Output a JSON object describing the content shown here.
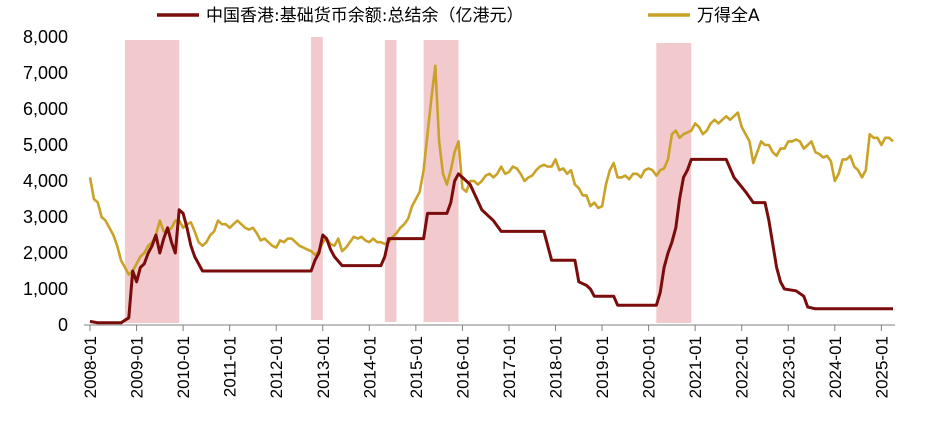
{
  "chart_data": {
    "type": "line",
    "y_ticks": [
      "0",
      "1,000",
      "2,000",
      "3,000",
      "4,000",
      "5,000",
      "6,000",
      "7,000",
      "8,000"
    ],
    "ylim": [
      0,
      8000
    ],
    "x_ticks": [
      "2008-01",
      "2009-01",
      "2010-01",
      "2011-01",
      "2012-01",
      "2013-01",
      "2014-01",
      "2015-01",
      "2016-01",
      "2017-01",
      "2018-01",
      "2019-01",
      "2020-01",
      "2021-01",
      "2022-01",
      "2023-01",
      "2024-01",
      "2025-01"
    ],
    "xlim": [
      "2008-01",
      "2025-04"
    ],
    "grid": false,
    "legend_position": "top",
    "colors": {
      "hkd_series": "#7a0c0c",
      "wind_a_series": "#c9a227",
      "shade": "#f2c9cc"
    },
    "shaded_periods": [
      {
        "start": "2008-10",
        "end": "2009-12"
      },
      {
        "start": "2012-10",
        "end": "2013-01"
      },
      {
        "start": "2014-05",
        "end": "2014-08"
      },
      {
        "start": "2015-03",
        "end": "2015-12"
      },
      {
        "start": "2020-03",
        "end": "2020-12"
      }
    ],
    "series": [
      {
        "name": "中国香港:基础货币余额:总结余（亿港元）",
        "points": [
          [
            "2008-01",
            100
          ],
          [
            "2008-03",
            60
          ],
          [
            "2008-09",
            60
          ],
          [
            "2008-11",
            200
          ],
          [
            "2008-12",
            1500
          ],
          [
            "2009-01",
            1200
          ],
          [
            "2009-02",
            1600
          ],
          [
            "2009-03",
            1700
          ],
          [
            "2009-04",
            2000
          ],
          [
            "2009-05",
            2200
          ],
          [
            "2009-06",
            2500
          ],
          [
            "2009-07",
            2000
          ],
          [
            "2009-08",
            2400
          ],
          [
            "2009-09",
            2700
          ],
          [
            "2009-10",
            2300
          ],
          [
            "2009-11",
            2000
          ],
          [
            "2009-12",
            3200
          ],
          [
            "2010-01",
            3100
          ],
          [
            "2010-02",
            2700
          ],
          [
            "2010-03",
            2200
          ],
          [
            "2010-04",
            1900
          ],
          [
            "2010-06",
            1500
          ],
          [
            "2012-10",
            1500
          ],
          [
            "2012-11",
            1800
          ],
          [
            "2012-12",
            2000
          ],
          [
            "2013-01",
            2500
          ],
          [
            "2013-02",
            2400
          ],
          [
            "2013-03",
            2100
          ],
          [
            "2013-04",
            1900
          ],
          [
            "2013-06",
            1650
          ],
          [
            "2014-04",
            1650
          ],
          [
            "2014-05",
            1900
          ],
          [
            "2014-06",
            2400
          ],
          [
            "2015-03",
            2400
          ],
          [
            "2015-04",
            3100
          ],
          [
            "2015-09",
            3100
          ],
          [
            "2015-10",
            3400
          ],
          [
            "2015-11",
            4000
          ],
          [
            "2015-12",
            4200
          ],
          [
            "2016-01",
            4100
          ],
          [
            "2016-03",
            3900
          ],
          [
            "2016-06",
            3200
          ],
          [
            "2016-09",
            2900
          ],
          [
            "2016-11",
            2600
          ],
          [
            "2017-10",
            2600
          ],
          [
            "2017-12",
            1800
          ],
          [
            "2018-06",
            1800
          ],
          [
            "2018-07",
            1200
          ],
          [
            "2018-09",
            1100
          ],
          [
            "2018-10",
            1000
          ],
          [
            "2018-11",
            800
          ],
          [
            "2019-04",
            800
          ],
          [
            "2019-05",
            550
          ],
          [
            "2020-03",
            550
          ],
          [
            "2020-04",
            900
          ],
          [
            "2020-05",
            1600
          ],
          [
            "2020-06",
            2000
          ],
          [
            "2020-07",
            2300
          ],
          [
            "2020-08",
            2700
          ],
          [
            "2020-09",
            3500
          ],
          [
            "2020-10",
            4100
          ],
          [
            "2020-11",
            4300
          ],
          [
            "2020-12",
            4600
          ],
          [
            "2021-09",
            4600
          ],
          [
            "2021-11",
            4100
          ],
          [
            "2022-02",
            3700
          ],
          [
            "2022-04",
            3400
          ],
          [
            "2022-07",
            3400
          ],
          [
            "2022-08",
            2900
          ],
          [
            "2022-10",
            1600
          ],
          [
            "2022-11",
            1200
          ],
          [
            "2022-12",
            1000
          ],
          [
            "2023-03",
            950
          ],
          [
            "2023-05",
            800
          ],
          [
            "2023-06",
            500
          ],
          [
            "2023-08",
            450
          ],
          [
            "2025-04",
            450
          ]
        ]
      },
      {
        "name": "万得全A",
        "points": [
          [
            "2008-01",
            4100
          ],
          [
            "2008-02",
            3500
          ],
          [
            "2008-03",
            3400
          ],
          [
            "2008-04",
            3000
          ],
          [
            "2008-05",
            2900
          ],
          [
            "2008-06",
            2700
          ],
          [
            "2008-07",
            2500
          ],
          [
            "2008-08",
            2200
          ],
          [
            "2008-09",
            1800
          ],
          [
            "2008-10",
            1600
          ],
          [
            "2008-11",
            1400
          ],
          [
            "2008-12",
            1500
          ],
          [
            "2009-01",
            1700
          ],
          [
            "2009-02",
            1900
          ],
          [
            "2009-03",
            2000
          ],
          [
            "2009-04",
            2200
          ],
          [
            "2009-05",
            2300
          ],
          [
            "2009-06",
            2500
          ],
          [
            "2009-07",
            2900
          ],
          [
            "2009-08",
            2600
          ],
          [
            "2009-09",
            2600
          ],
          [
            "2009-10",
            2700
          ],
          [
            "2009-11",
            2900
          ],
          [
            "2009-12",
            2900
          ],
          [
            "2010-01",
            2700
          ],
          [
            "2010-02",
            2800
          ],
          [
            "2010-03",
            2850
          ],
          [
            "2010-04",
            2600
          ],
          [
            "2010-05",
            2300
          ],
          [
            "2010-06",
            2200
          ],
          [
            "2010-07",
            2300
          ],
          [
            "2010-08",
            2500
          ],
          [
            "2010-09",
            2600
          ],
          [
            "2010-10",
            2900
          ],
          [
            "2010-11",
            2800
          ],
          [
            "2010-12",
            2800
          ],
          [
            "2011-01",
            2700
          ],
          [
            "2011-02",
            2800
          ],
          [
            "2011-03",
            2900
          ],
          [
            "2011-04",
            2800
          ],
          [
            "2011-05",
            2700
          ],
          [
            "2011-06",
            2650
          ],
          [
            "2011-07",
            2700
          ],
          [
            "2011-08",
            2550
          ],
          [
            "2011-09",
            2350
          ],
          [
            "2011-10",
            2400
          ],
          [
            "2011-11",
            2300
          ],
          [
            "2011-12",
            2200
          ],
          [
            "2012-01",
            2150
          ],
          [
            "2012-02",
            2350
          ],
          [
            "2012-03",
            2300
          ],
          [
            "2012-04",
            2400
          ],
          [
            "2012-05",
            2400
          ],
          [
            "2012-06",
            2300
          ],
          [
            "2012-07",
            2200
          ],
          [
            "2012-08",
            2150
          ],
          [
            "2012-09",
            2100
          ],
          [
            "2012-10",
            2050
          ],
          [
            "2012-11",
            1950
          ],
          [
            "2012-12",
            2050
          ],
          [
            "2013-01",
            2300
          ],
          [
            "2013-02",
            2400
          ],
          [
            "2013-03",
            2250
          ],
          [
            "2013-04",
            2200
          ],
          [
            "2013-05",
            2400
          ],
          [
            "2013-06",
            2050
          ],
          [
            "2013-07",
            2150
          ],
          [
            "2013-08",
            2300
          ],
          [
            "2013-09",
            2450
          ],
          [
            "2013-10",
            2400
          ],
          [
            "2013-11",
            2450
          ],
          [
            "2013-12",
            2350
          ],
          [
            "2014-01",
            2300
          ],
          [
            "2014-02",
            2400
          ],
          [
            "2014-03",
            2300
          ],
          [
            "2014-04",
            2300
          ],
          [
            "2014-05",
            2250
          ],
          [
            "2014-06",
            2300
          ],
          [
            "2014-07",
            2450
          ],
          [
            "2014-08",
            2550
          ],
          [
            "2014-09",
            2700
          ],
          [
            "2014-10",
            2800
          ],
          [
            "2014-11",
            2950
          ],
          [
            "2014-12",
            3300
          ],
          [
            "2015-01",
            3500
          ],
          [
            "2015-02",
            3700
          ],
          [
            "2015-03",
            4300
          ],
          [
            "2015-04",
            5300
          ],
          [
            "2015-05",
            6300
          ],
          [
            "2015-06",
            7200
          ],
          [
            "2015-07",
            5100
          ],
          [
            "2015-08",
            4200
          ],
          [
            "2015-09",
            3900
          ],
          [
            "2015-10",
            4300
          ],
          [
            "2015-11",
            4800
          ],
          [
            "2015-12",
            5100
          ],
          [
            "2016-01",
            3800
          ],
          [
            "2016-02",
            3700
          ],
          [
            "2016-03",
            4000
          ],
          [
            "2016-04",
            4000
          ],
          [
            "2016-05",
            3900
          ],
          [
            "2016-06",
            4000
          ],
          [
            "2016-07",
            4150
          ],
          [
            "2016-08",
            4200
          ],
          [
            "2016-09",
            4100
          ],
          [
            "2016-10",
            4200
          ],
          [
            "2016-11",
            4400
          ],
          [
            "2016-12",
            4200
          ],
          [
            "2017-01",
            4250
          ],
          [
            "2017-02",
            4400
          ],
          [
            "2017-03",
            4350
          ],
          [
            "2017-04",
            4200
          ],
          [
            "2017-05",
            4000
          ],
          [
            "2017-06",
            4100
          ],
          [
            "2017-07",
            4150
          ],
          [
            "2017-08",
            4300
          ],
          [
            "2017-09",
            4400
          ],
          [
            "2017-10",
            4450
          ],
          [
            "2017-11",
            4400
          ],
          [
            "2017-12",
            4400
          ],
          [
            "2018-01",
            4600
          ],
          [
            "2018-02",
            4300
          ],
          [
            "2018-03",
            4350
          ],
          [
            "2018-04",
            4200
          ],
          [
            "2018-05",
            4300
          ],
          [
            "2018-06",
            3900
          ],
          [
            "2018-07",
            3800
          ],
          [
            "2018-08",
            3600
          ],
          [
            "2018-09",
            3600
          ],
          [
            "2018-10",
            3300
          ],
          [
            "2018-11",
            3400
          ],
          [
            "2018-12",
            3250
          ],
          [
            "2019-01",
            3300
          ],
          [
            "2019-02",
            3900
          ],
          [
            "2019-03",
            4300
          ],
          [
            "2019-04",
            4500
          ],
          [
            "2019-05",
            4100
          ],
          [
            "2019-06",
            4100
          ],
          [
            "2019-07",
            4150
          ],
          [
            "2019-08",
            4050
          ],
          [
            "2019-09",
            4200
          ],
          [
            "2019-10",
            4200
          ],
          [
            "2019-11",
            4100
          ],
          [
            "2019-12",
            4300
          ],
          [
            "2020-01",
            4350
          ],
          [
            "2020-02",
            4300
          ],
          [
            "2020-03",
            4150
          ],
          [
            "2020-04",
            4300
          ],
          [
            "2020-05",
            4350
          ],
          [
            "2020-06",
            4600
          ],
          [
            "2020-07",
            5300
          ],
          [
            "2020-08",
            5400
          ],
          [
            "2020-09",
            5200
          ],
          [
            "2020-10",
            5300
          ],
          [
            "2020-11",
            5350
          ],
          [
            "2020-12",
            5400
          ],
          [
            "2021-01",
            5600
          ],
          [
            "2021-02",
            5500
          ],
          [
            "2021-03",
            5300
          ],
          [
            "2021-04",
            5400
          ],
          [
            "2021-05",
            5600
          ],
          [
            "2021-06",
            5700
          ],
          [
            "2021-07",
            5600
          ],
          [
            "2021-08",
            5700
          ],
          [
            "2021-09",
            5800
          ],
          [
            "2021-10",
            5700
          ],
          [
            "2021-11",
            5800
          ],
          [
            "2021-12",
            5900
          ],
          [
            "2022-01",
            5500
          ],
          [
            "2022-02",
            5300
          ],
          [
            "2022-03",
            5100
          ],
          [
            "2022-04",
            4500
          ],
          [
            "2022-05",
            4800
          ],
          [
            "2022-06",
            5100
          ],
          [
            "2022-07",
            5000
          ],
          [
            "2022-08",
            5000
          ],
          [
            "2022-09",
            4800
          ],
          [
            "2022-10",
            4700
          ],
          [
            "2022-11",
            4900
          ],
          [
            "2022-12",
            4900
          ],
          [
            "2023-01",
            5100
          ],
          [
            "2023-02",
            5100
          ],
          [
            "2023-03",
            5150
          ],
          [
            "2023-04",
            5100
          ],
          [
            "2023-05",
            4900
          ],
          [
            "2023-06",
            5000
          ],
          [
            "2023-07",
            5100
          ],
          [
            "2023-08",
            4800
          ],
          [
            "2023-09",
            4750
          ],
          [
            "2023-10",
            4650
          ],
          [
            "2023-11",
            4700
          ],
          [
            "2023-12",
            4550
          ],
          [
            "2024-01",
            4000
          ],
          [
            "2024-02",
            4200
          ],
          [
            "2024-03",
            4600
          ],
          [
            "2024-04",
            4600
          ],
          [
            "2024-05",
            4700
          ],
          [
            "2024-06",
            4400
          ],
          [
            "2024-07",
            4300
          ],
          [
            "2024-08",
            4100
          ],
          [
            "2024-09",
            4300
          ],
          [
            "2024-10",
            5300
          ],
          [
            "2024-11",
            5200
          ],
          [
            "2024-12",
            5200
          ],
          [
            "2025-01",
            5000
          ],
          [
            "2025-02",
            5200
          ],
          [
            "2025-03",
            5200
          ],
          [
            "2025-04",
            5100
          ]
        ]
      }
    ]
  }
}
